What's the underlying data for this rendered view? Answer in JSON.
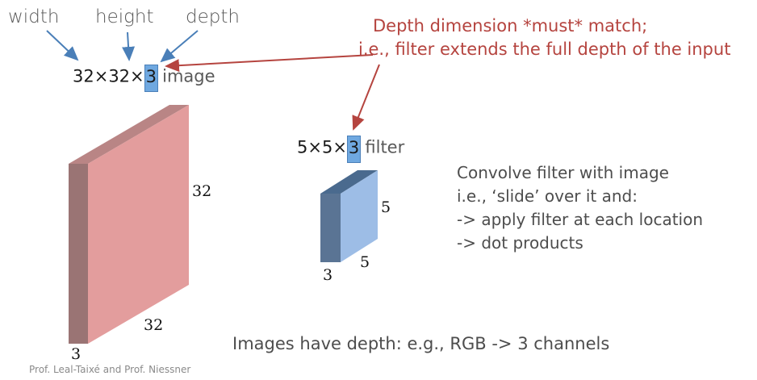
{
  "top_labels": {
    "width": "width",
    "height": "height",
    "depth": "depth"
  },
  "image_spec": {
    "dims": "32×32×",
    "depth": "3",
    "word": "image"
  },
  "filter_spec": {
    "dims": "5×5×",
    "depth": "3",
    "word": "filter"
  },
  "note": {
    "line1": "Depth dimension *must* match;",
    "line2": "i.e., filter extends the full depth of the input"
  },
  "image_dims": {
    "height": "32",
    "width": "32",
    "depth": "3"
  },
  "filter_dims": {
    "height": "5",
    "width": "5",
    "depth": "3"
  },
  "description": {
    "line1": "Convolve filter with image",
    "line2": "i.e., ‘slide’ over it and:",
    "line3": "-> apply filter at each location",
    "line4": "-> dot products"
  },
  "caption": "Images have depth: e.g., RGB -> 3 channels",
  "footer": "Prof. Leal-Taixé and Prof. Niessner",
  "colors": {
    "image_front": "#e39d9d",
    "image_top": "#b98585",
    "image_side": "#9a7474",
    "filter_front": "#9dbde6",
    "filter_top": "#4a6a8e",
    "filter_side": "#5a7494",
    "label_arrow": "#4a7fb8",
    "note_arrow": "#b5443f"
  }
}
